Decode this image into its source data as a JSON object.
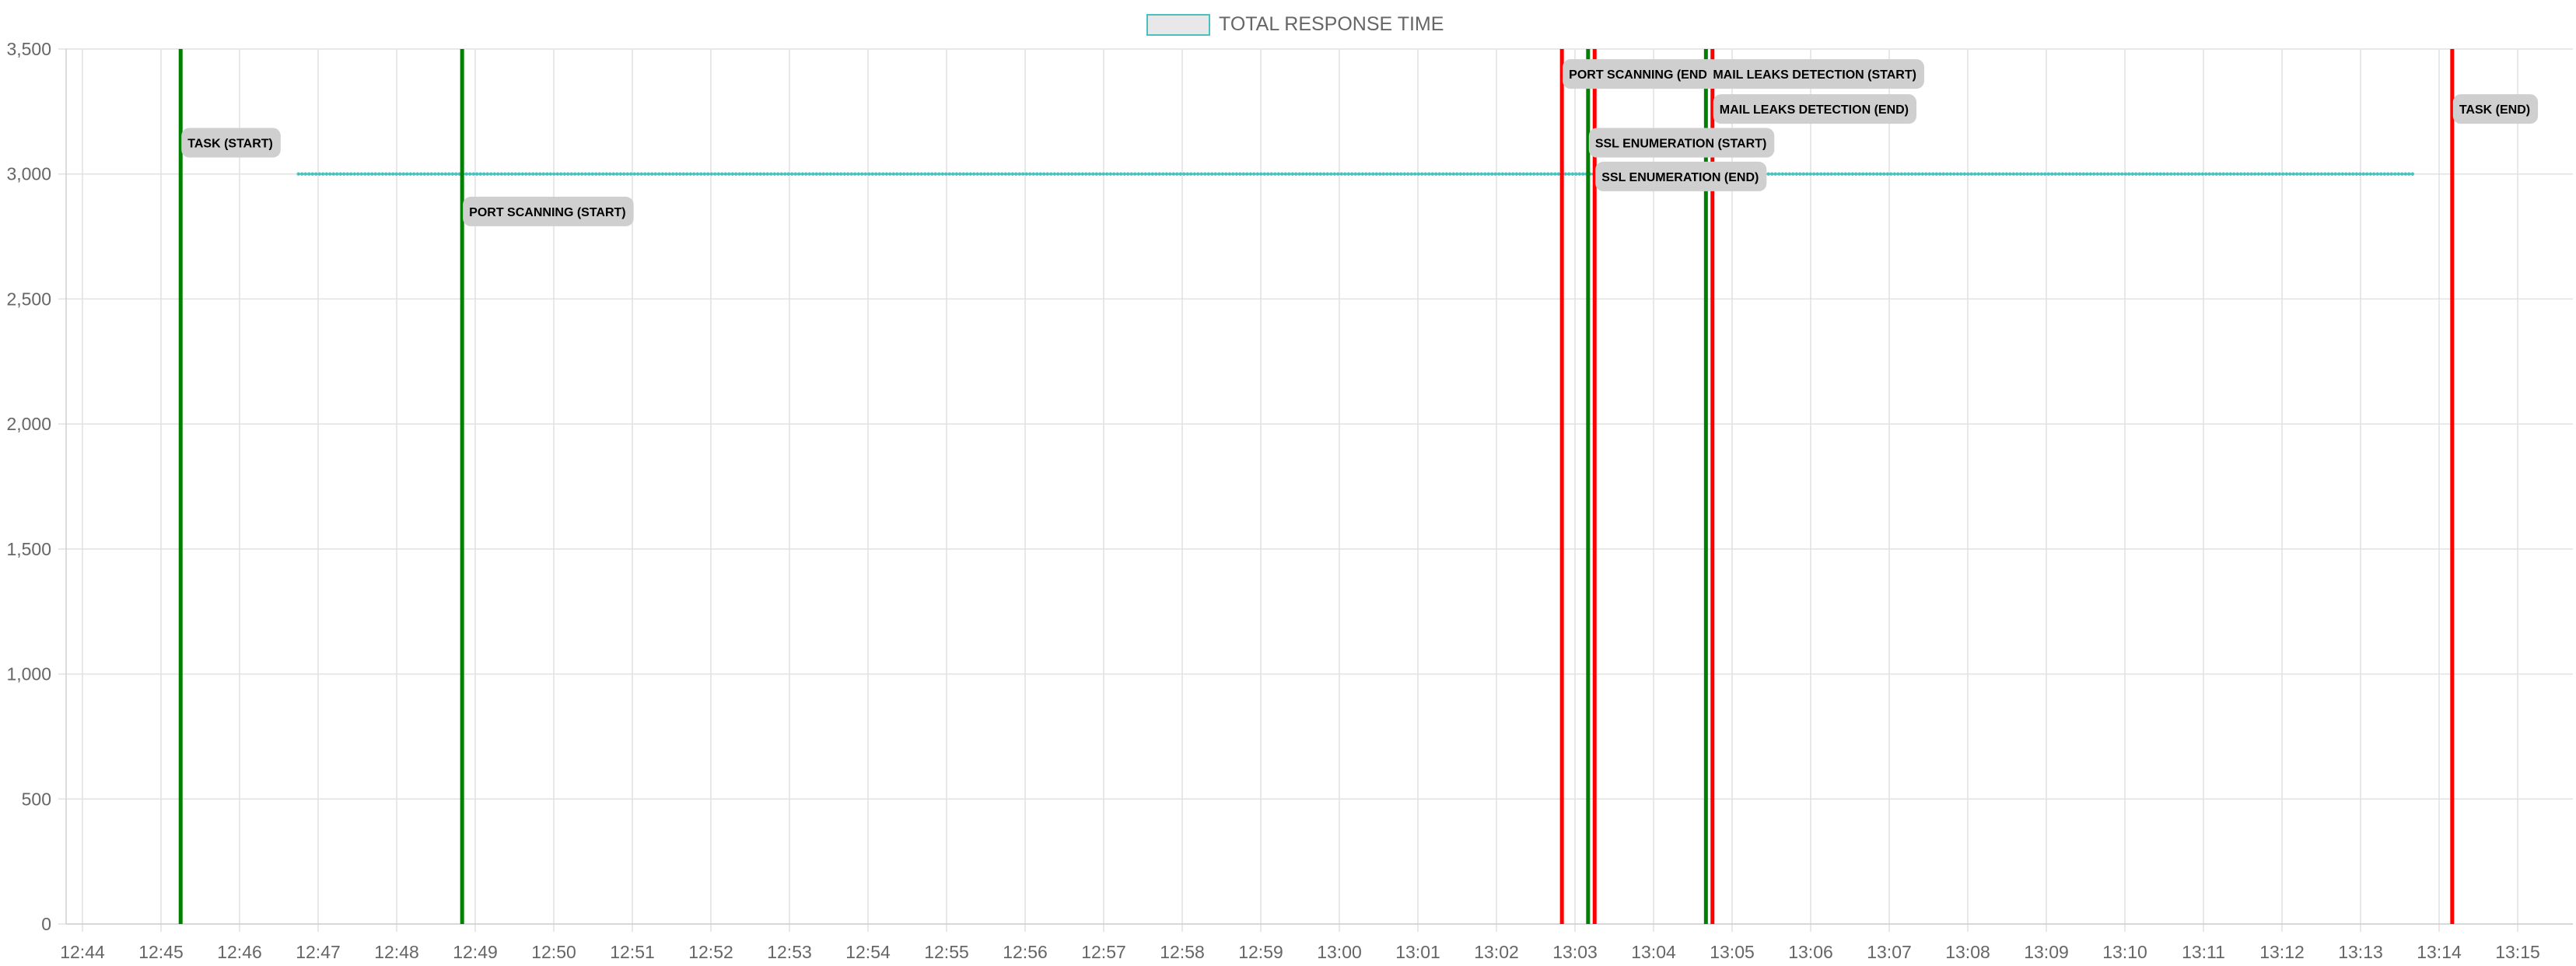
{
  "chart_data": {
    "type": "line",
    "legend": {
      "label": "TOTAL RESPONSE TIME",
      "position": "top-center"
    },
    "series": [
      {
        "name": "TOTAL RESPONSE TIME",
        "color": "#4bc0c0",
        "x_start": "12:46:45",
        "x_end": "13:13:40",
        "y": 3000,
        "point_marker": "small dots"
      }
    ],
    "x_axis": {
      "type": "time",
      "range": [
        "12:44",
        "13:15"
      ],
      "ticks": [
        "12:44",
        "12:45",
        "12:46",
        "12:47",
        "12:48",
        "12:49",
        "12:50",
        "12:51",
        "12:52",
        "12:53",
        "12:54",
        "12:55",
        "12:56",
        "12:57",
        "12:58",
        "12:59",
        "13:00",
        "13:01",
        "13:02",
        "13:03",
        "13:04",
        "13:05",
        "13:06",
        "13:07",
        "13:08",
        "13:09",
        "13:10",
        "13:11",
        "13:12",
        "13:13",
        "13:14",
        "13:15"
      ]
    },
    "y_axis": {
      "range": [
        0,
        3500
      ],
      "ticks": [
        "0",
        "500",
        "1,000",
        "1,500",
        "2,000",
        "2,500",
        "3,000",
        "3,500"
      ]
    },
    "grid": true,
    "annotations": [
      {
        "label": "TASK (START)",
        "time": "12:45:15",
        "color": "#008000",
        "label_y": 3125
      },
      {
        "label": "PORT SCANNING (START)",
        "time": "12:48:50",
        "color": "#008000",
        "label_y": 2850
      },
      {
        "label": "PORT SCANNING (END)",
        "time": "13:02:50",
        "color": "#ff0000",
        "label_y": 3400
      },
      {
        "label": "SSL ENUMERATION (START)",
        "time": "13:03:10",
        "color": "#008000",
        "label_y": 3125
      },
      {
        "label": "SSL ENUMERATION (END)",
        "time": "13:03:15",
        "color": "#ff0000",
        "label_y": 2990
      },
      {
        "label": "MAIL LEAKS DETECTION (START)",
        "time": "13:04:40",
        "color": "#008000",
        "label_y": 3400
      },
      {
        "label": "MAIL LEAKS DETECTION (END)",
        "time": "13:04:45",
        "color": "#ff0000",
        "label_y": 3260
      },
      {
        "label": "TASK (END)",
        "time": "13:14:10",
        "color": "#ff0000",
        "label_y": 3260
      }
    ]
  }
}
